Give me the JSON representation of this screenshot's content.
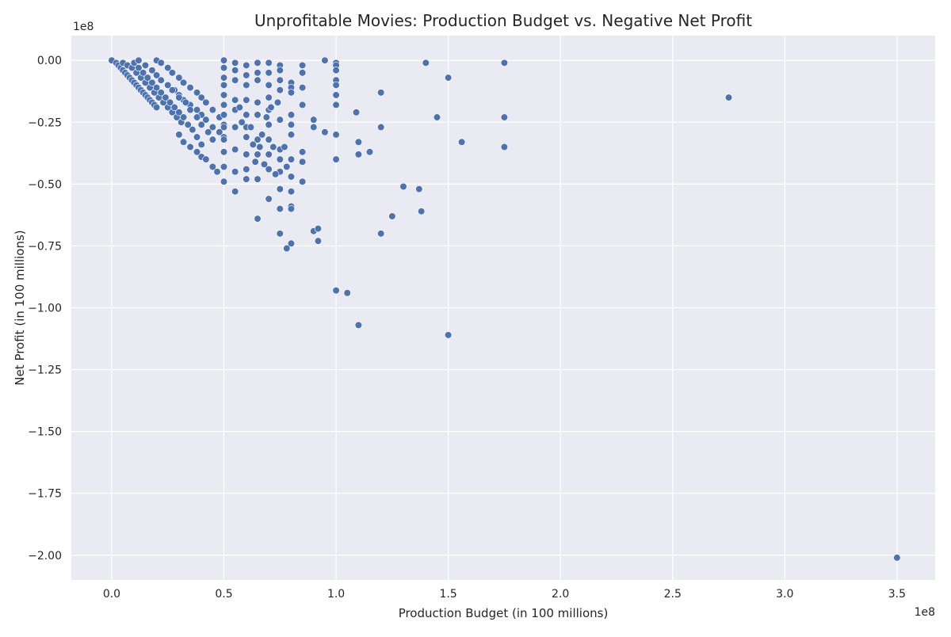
{
  "chart_data": {
    "type": "scatter",
    "title": "Unprofitable Movies: Production Budget vs. Negative Net Profit",
    "xlabel": "Production Budget (in 100 millions)",
    "ylabel": "Net Profit (in 100 millions)",
    "x_offset_label": "1e8",
    "y_offset_label": "1e8",
    "xlim": [
      -0.18,
      3.67
    ],
    "ylim": [
      -2.1,
      0.1
    ],
    "x_ticks": [
      0,
      0.5,
      1.0,
      1.5,
      2.0,
      2.5,
      3.0,
      3.5
    ],
    "x_tick_labels": [
      "0.0",
      "0.5",
      "1.0",
      "1.5",
      "2.0",
      "2.5",
      "3.0",
      "3.5"
    ],
    "y_ticks": [
      0,
      -0.25,
      -0.5,
      -0.75,
      -1.0,
      -1.25,
      -1.5,
      -1.75,
      -2.0
    ],
    "y_tick_labels": [
      "0.00",
      "−0.25",
      "−0.50",
      "−0.75",
      "−1.00",
      "−1.25",
      "−1.50",
      "−1.75",
      "−2.00"
    ],
    "grid": true,
    "colors": {
      "background": "#eaeaf2",
      "grid": "#ffffff",
      "point": "#4c72b0"
    },
    "series": [
      {
        "x": [
          0.0,
          0.02,
          0.03,
          0.04,
          0.05,
          0.06,
          0.07,
          0.08,
          0.09,
          0.1,
          0.11,
          0.12,
          0.13,
          0.14,
          0.15,
          0.16,
          0.17,
          0.18,
          0.19,
          0.2,
          0.05,
          0.07,
          0.09,
          0.11,
          0.13,
          0.15,
          0.17,
          0.19,
          0.21,
          0.23,
          0.25,
          0.27,
          0.29,
          0.31,
          0.1,
          0.12,
          0.14,
          0.16,
          0.18,
          0.2,
          0.22,
          0.24,
          0.26,
          0.28,
          0.3,
          0.32,
          0.34,
          0.36,
          0.38,
          0.4,
          0.12,
          0.15,
          0.18,
          0.2,
          0.22,
          0.25,
          0.28,
          0.3,
          0.32,
          0.35,
          0.38,
          0.4,
          0.42,
          0.45,
          0.48,
          0.5,
          0.2,
          0.22,
          0.25,
          0.27,
          0.3,
          0.32,
          0.35,
          0.38,
          0.4,
          0.42,
          0.45,
          0.48,
          0.5,
          0.15,
          0.18,
          0.2,
          0.22,
          0.25,
          0.27,
          0.3,
          0.33,
          0.35,
          0.38,
          0.4,
          0.43,
          0.45,
          0.3,
          0.32,
          0.35,
          0.38,
          0.4,
          0.42,
          0.45,
          0.47,
          0.5,
          0.5,
          0.5,
          0.5,
          0.5,
          0.5,
          0.5,
          0.5,
          0.5,
          0.5,
          0.5,
          0.5,
          0.55,
          0.55,
          0.55,
          0.55,
          0.55,
          0.55,
          0.55,
          0.55,
          0.55,
          0.6,
          0.6,
          0.6,
          0.6,
          0.6,
          0.6,
          0.6,
          0.6,
          0.6,
          0.6,
          0.65,
          0.65,
          0.65,
          0.65,
          0.65,
          0.65,
          0.65,
          0.65,
          0.65,
          0.7,
          0.7,
          0.7,
          0.7,
          0.7,
          0.7,
          0.7,
          0.7,
          0.7,
          0.7,
          0.75,
          0.75,
          0.75,
          0.75,
          0.75,
          0.75,
          0.75,
          0.75,
          0.75,
          0.8,
          0.8,
          0.8,
          0.8,
          0.8,
          0.8,
          0.8,
          0.8,
          0.8,
          0.8,
          0.85,
          0.85,
          0.85,
          0.85,
          0.85,
          0.85,
          0.85,
          0.57,
          0.62,
          0.67,
          0.72,
          0.77,
          0.58,
          0.63,
          0.68,
          0.73,
          0.78,
          0.64,
          0.69,
          0.74,
          0.66,
          0.71,
          0.75,
          0.75,
          0.78,
          0.8,
          0.8,
          0.9,
          0.9,
          0.9,
          0.92,
          0.92,
          0.95,
          0.95,
          1.0,
          1.0,
          1.0,
          1.0,
          1.0,
          1.0,
          1.0,
          1.0,
          1.0,
          1.0,
          1.05,
          1.09,
          1.1,
          1.1,
          1.1,
          1.15,
          1.2,
          1.2,
          1.2,
          1.25,
          1.3,
          1.37,
          1.38,
          1.4,
          1.45,
          1.5,
          1.5,
          1.56,
          1.75,
          1.75,
          1.75,
          2.75,
          3.5
        ],
        "y": [
          0.0,
          -0.01,
          -0.02,
          -0.03,
          -0.04,
          -0.05,
          -0.06,
          -0.07,
          -0.08,
          -0.09,
          -0.1,
          -0.11,
          -0.12,
          -0.13,
          -0.14,
          -0.15,
          -0.16,
          -0.17,
          -0.18,
          -0.19,
          -0.01,
          -0.02,
          -0.03,
          -0.05,
          -0.07,
          -0.09,
          -0.11,
          -0.13,
          -0.15,
          -0.17,
          -0.19,
          -0.21,
          -0.23,
          -0.25,
          -0.01,
          -0.03,
          -0.05,
          -0.07,
          -0.09,
          -0.11,
          -0.13,
          -0.15,
          -0.17,
          -0.19,
          -0.21,
          -0.23,
          -0.26,
          -0.28,
          -0.31,
          -0.34,
          0.0,
          -0.02,
          -0.04,
          -0.06,
          -0.08,
          -0.1,
          -0.12,
          -0.14,
          -0.16,
          -0.18,
          -0.2,
          -0.22,
          -0.24,
          -0.27,
          -0.29,
          -0.31,
          0.0,
          -0.01,
          -0.03,
          -0.05,
          -0.07,
          -0.09,
          -0.11,
          -0.13,
          -0.15,
          -0.17,
          -0.2,
          -0.23,
          -0.26,
          -0.02,
          -0.04,
          -0.06,
          -0.08,
          -0.1,
          -0.12,
          -0.15,
          -0.17,
          -0.2,
          -0.23,
          -0.26,
          -0.29,
          -0.32,
          -0.3,
          -0.33,
          -0.35,
          -0.37,
          -0.39,
          -0.4,
          -0.43,
          -0.45,
          0.0,
          -0.03,
          -0.07,
          -0.1,
          -0.14,
          -0.18,
          -0.22,
          -0.27,
          -0.32,
          -0.37,
          -0.43,
          -0.49,
          -0.01,
          -0.04,
          -0.08,
          -0.16,
          -0.2,
          -0.27,
          -0.36,
          -0.45,
          -0.53,
          -0.02,
          -0.06,
          -0.1,
          -0.16,
          -0.22,
          -0.27,
          -0.31,
          -0.38,
          -0.44,
          -0.48,
          -0.01,
          -0.05,
          -0.08,
          -0.17,
          -0.22,
          -0.32,
          -0.38,
          -0.48,
          -0.64,
          -0.01,
          -0.05,
          -0.1,
          -0.15,
          -0.2,
          -0.26,
          -0.32,
          -0.38,
          -0.44,
          -0.56,
          -0.02,
          -0.04,
          -0.08,
          -0.12,
          -0.24,
          -0.36,
          -0.4,
          -0.45,
          -0.6,
          -0.09,
          -0.11,
          -0.13,
          -0.22,
          -0.26,
          -0.3,
          -0.4,
          -0.47,
          -0.53,
          -0.59,
          -0.02,
          -0.05,
          -0.11,
          -0.18,
          -0.37,
          -0.41,
          -0.49,
          -0.19,
          -0.27,
          -0.3,
          -0.35,
          -0.35,
          -0.25,
          -0.34,
          -0.42,
          -0.46,
          -0.43,
          -0.41,
          -0.23,
          -0.17,
          -0.35,
          -0.19,
          -0.7,
          -0.52,
          -0.76,
          -0.74,
          -0.6,
          -0.24,
          -0.27,
          -0.69,
          -0.68,
          -0.73,
          -0.29,
          0.0,
          -0.01,
          -0.02,
          -0.04,
          -0.08,
          -0.1,
          -0.14,
          -0.18,
          -0.3,
          -0.4,
          -0.93,
          -0.94,
          -0.21,
          -0.33,
          -0.38,
          -1.07,
          -0.37,
          -0.13,
          -0.27,
          -0.7,
          -0.63,
          -0.51,
          -0.52,
          -0.61,
          -0.01,
          -0.23,
          -0.07,
          -1.11,
          -0.33,
          -0.01,
          -0.23,
          -0.35,
          -0.15,
          -2.01
        ]
      }
    ]
  }
}
